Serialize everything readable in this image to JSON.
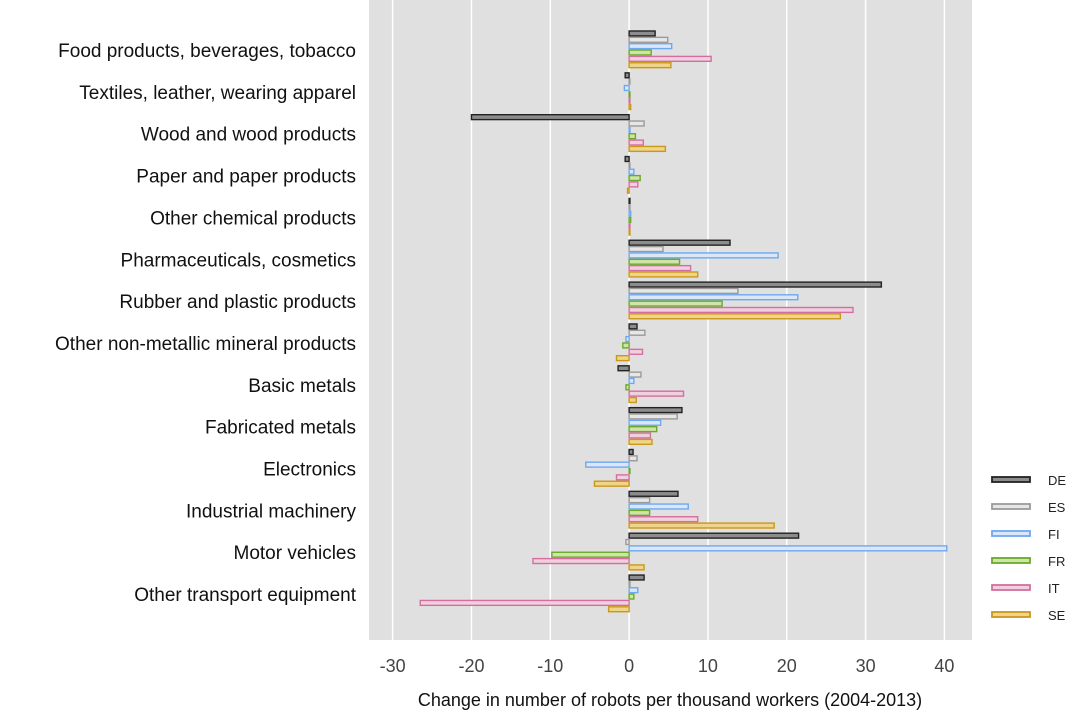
{
  "chart_data": {
    "type": "bar",
    "orientation": "horizontal",
    "xlabel": "Change in number of robots per thousand workers (2004-2013)",
    "xlim": [
      -33,
      43.5
    ],
    "xticks": [
      -30,
      -20,
      -10,
      0,
      10,
      20,
      30,
      40
    ],
    "grid": true,
    "legend_position": "right-bottom",
    "categories": [
      "Food products, beverages, tobacco",
      "Textiles, leather, wearing apparel",
      "Wood and wood products",
      "Paper and paper products",
      "Other chemical products",
      "Pharmaceuticals, cosmetics",
      "Rubber and plastic products",
      "Other non-metallic mineral products",
      "Basic metals",
      "Fabricated metals",
      "Electronics",
      "Industrial machinery",
      "Motor vehicles",
      "Other transport equipment"
    ],
    "series": [
      {
        "name": "DE",
        "color": "#222222",
        "fill": "#8c8c8c",
        "values": [
          3.3,
          -0.5,
          -20.0,
          -0.5,
          0.1,
          12.8,
          32.0,
          1.0,
          -1.4,
          6.7,
          0.5,
          6.2,
          21.5,
          1.9
        ]
      },
      {
        "name": "ES",
        "color": "#9a9a9a",
        "fill": "#e6e6e6",
        "values": [
          4.9,
          0.0,
          1.9,
          0.0,
          0.1,
          4.3,
          13.8,
          2.0,
          1.5,
          6.1,
          1.0,
          2.6,
          -0.4,
          0.0
        ]
      },
      {
        "name": "FI",
        "color": "#6ea8f0",
        "fill": "#dbe7f7",
        "values": [
          5.4,
          -0.6,
          0.0,
          0.6,
          0.2,
          18.9,
          21.4,
          -0.4,
          0.6,
          4.0,
          -5.5,
          7.5,
          40.3,
          1.1
        ]
      },
      {
        "name": "FR",
        "color": "#6aaa2a",
        "fill": "#cfe4a8",
        "values": [
          2.8,
          0.0,
          0.8,
          1.4,
          0.2,
          6.4,
          11.8,
          -0.8,
          -0.4,
          3.5,
          0.0,
          2.6,
          -9.8,
          0.6
        ]
      },
      {
        "name": "IT",
        "color": "#d36fa0",
        "fill": "#f0cfdf",
        "values": [
          10.4,
          0.0,
          1.8,
          1.1,
          0.1,
          7.8,
          28.4,
          1.7,
          6.9,
          2.7,
          -1.6,
          8.7,
          -12.2,
          -26.5
        ]
      },
      {
        "name": "SE",
        "color": "#c9981c",
        "fill": "#efd48a",
        "values": [
          5.3,
          0.2,
          4.6,
          -0.2,
          0.1,
          8.7,
          26.8,
          -1.6,
          0.9,
          2.9,
          -4.4,
          18.4,
          1.9,
          -2.6
        ]
      }
    ]
  }
}
